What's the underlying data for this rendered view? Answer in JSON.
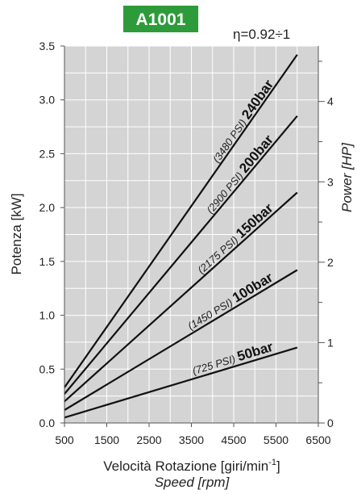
{
  "chart_data": {
    "type": "line",
    "badge": "A1001",
    "efficiency_note": "η=0.92÷1",
    "x_label_main": "Velocità Rotazione [giri/min",
    "x_label_sup": "-1",
    "x_label_end": "]",
    "x_label_secondary": "Speed [rpm]",
    "y_label_left": "Potenza [kW]",
    "y_label_right": "Power [HP]",
    "x_ticks": [
      "500",
      "1500",
      "2500",
      "3500",
      "4500",
      "5500",
      "6500"
    ],
    "y_ticks_left": [
      "0.0",
      "0.5",
      "1.0",
      "1.5",
      "2.0",
      "2.5",
      "3.0",
      "3.5"
    ],
    "y_ticks_right": [
      "0",
      "1",
      "2",
      "3",
      "4"
    ],
    "xlim": [
      500,
      6500
    ],
    "ylim_left": [
      0,
      3.5
    ],
    "ylim_right_hp": [
      0,
      4.69
    ],
    "x_grid_step": 500,
    "y_grid_step": 0.25,
    "right_minor_step_hp": 0.5,
    "series": [
      {
        "name": "50bar",
        "psi": "(725 PSI)",
        "x": [
          500,
          6000
        ],
        "y": [
          0.05,
          0.7
        ]
      },
      {
        "name": "100bar",
        "psi": "(1450 PSI)",
        "x": [
          500,
          6000
        ],
        "y": [
          0.12,
          1.42
        ]
      },
      {
        "name": "150bar",
        "psi": "(2175 PSI)",
        "x": [
          500,
          6000
        ],
        "y": [
          0.2,
          2.14
        ]
      },
      {
        "name": "200bar",
        "psi": "(2900 PSI)",
        "x": [
          500,
          6000
        ],
        "y": [
          0.27,
          2.85
        ]
      },
      {
        "name": "240bar",
        "psi": "(3480 PSI)",
        "x": [
          500,
          6000
        ],
        "y": [
          0.33,
          3.42
        ]
      }
    ]
  },
  "colors": {
    "badge": "#2e9b3a",
    "plot_background": "#d4d4d4",
    "grid": "#ffffff",
    "lines": "#111111"
  }
}
